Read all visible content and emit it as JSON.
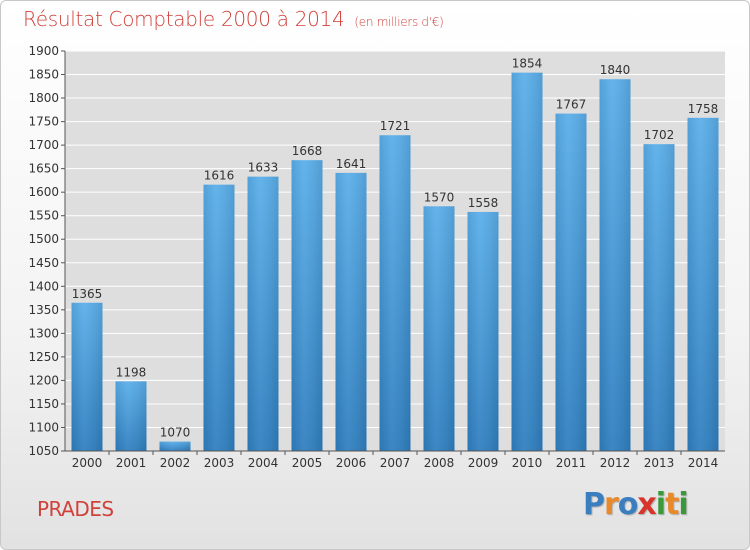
{
  "title": "Résultat Comptable 2000 à 2014",
  "unit": "(en milliers d'€)",
  "place": "PRADES",
  "logo": {
    "text": "Proxiti",
    "letters": [
      {
        "ch": "P",
        "color": "#3a7ebf"
      },
      {
        "ch": "r",
        "color": "#e8892b"
      },
      {
        "ch": "o",
        "color": "#3a7ebf"
      },
      {
        "ch": "x",
        "color": "#d7342a"
      },
      {
        "ch": "i",
        "color": "#3a9a3a"
      },
      {
        "ch": "t",
        "color": "#e8892b"
      },
      {
        "ch": "i",
        "color": "#3a9a3a"
      }
    ]
  },
  "chart_data": {
    "type": "bar",
    "title": "Résultat Comptable 2000 à 2014",
    "subtitle": "(en milliers d'€)",
    "categories": [
      "2000",
      "2001",
      "2002",
      "2003",
      "2004",
      "2005",
      "2006",
      "2007",
      "2008",
      "2009",
      "2010",
      "2011",
      "2012",
      "2013",
      "2014"
    ],
    "values": [
      1365,
      1198,
      1070,
      1616,
      1633,
      1668,
      1641,
      1721,
      1570,
      1558,
      1854,
      1767,
      1840,
      1702,
      1758
    ],
    "ylim": [
      1050,
      1900
    ],
    "yticks": [
      1050,
      1100,
      1150,
      1200,
      1250,
      1300,
      1350,
      1400,
      1450,
      1500,
      1550,
      1600,
      1650,
      1700,
      1750,
      1800,
      1850,
      1900
    ],
    "grid": true,
    "bar_color": "#4a9ee0"
  }
}
